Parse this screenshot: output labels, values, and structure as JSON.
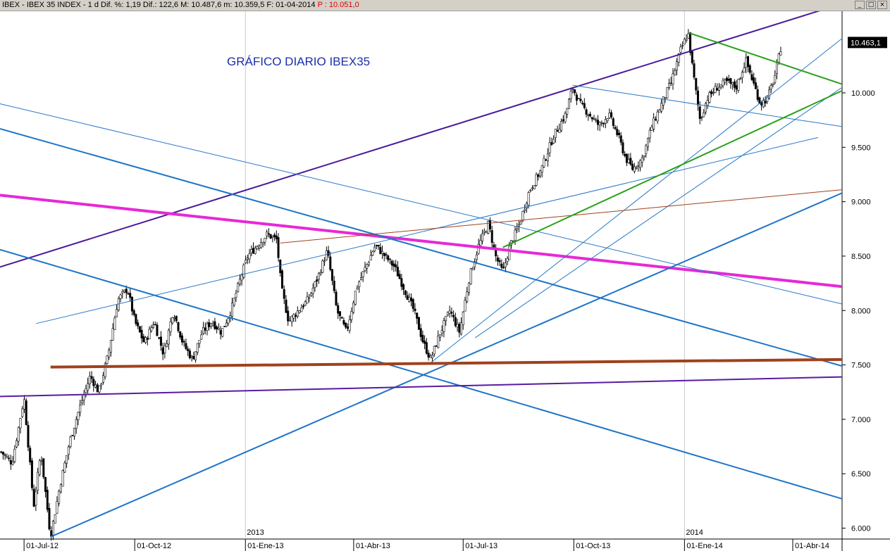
{
  "window": {
    "title_main": "IBEX - IBEX 35 INDEX - 1 d Dif. %: 1,19 Dif.: 122,6 M: 10.487,6 m: 10.359,5 F: 01-04-2014 ",
    "title_price": "P : 10.051,0",
    "minimize_icon": "minimize-icon",
    "maximize_icon": "maximize-icon",
    "close_icon": "close-icon",
    "minimize_glyph": "_",
    "maximize_glyph": "□",
    "close_glyph": "×"
  },
  "chart_data": {
    "type": "candlestick",
    "annotation": "GRÁFICO DIARIO IBEX35",
    "y_ticks": [
      "6.000",
      "6.500",
      "7.000",
      "7.500",
      "8.000",
      "8.500",
      "9.000",
      "9.500",
      "10.000"
    ],
    "y_tick_values": [
      6000,
      6500,
      7000,
      7500,
      8000,
      8500,
      9000,
      9500,
      10000
    ],
    "ylim": [
      5900,
      10750
    ],
    "last_price_label": "10.463,1",
    "last_price_value": 10463.1,
    "x_ticks": [
      "01-Jul-12",
      "01-Oct-12",
      "01-Ene-13",
      "01-Abr-13",
      "01-Jul-13",
      "01-Oct-13",
      "01-Ene-14",
      "01-Abr-14"
    ],
    "x_tick_days": [
      0,
      92,
      184,
      274,
      365,
      457,
      549,
      639
    ],
    "year_labels": [
      "2013",
      "2014"
    ],
    "year_days": [
      184,
      549
    ],
    "xlim_days": [
      -20,
      680
    ],
    "price_path": [
      [
        -19,
        6700
      ],
      [
        -10,
        6600
      ],
      [
        0,
        7200
      ],
      [
        8,
        6200
      ],
      [
        14,
        6700
      ],
      [
        22,
        5920
      ],
      [
        30,
        6400
      ],
      [
        38,
        6800
      ],
      [
        46,
        7100
      ],
      [
        55,
        7400
      ],
      [
        62,
        7250
      ],
      [
        70,
        7600
      ],
      [
        78,
        8100
      ],
      [
        86,
        8200
      ],
      [
        92,
        7900
      ],
      [
        100,
        7700
      ],
      [
        108,
        7900
      ],
      [
        116,
        7600
      ],
      [
        124,
        8000
      ],
      [
        132,
        7700
      ],
      [
        140,
        7550
      ],
      [
        148,
        7800
      ],
      [
        156,
        7900
      ],
      [
        164,
        7800
      ],
      [
        172,
        8000
      ],
      [
        180,
        8300
      ],
      [
        186,
        8500
      ],
      [
        194,
        8600
      ],
      [
        202,
        8700
      ],
      [
        210,
        8650
      ],
      [
        214,
        8200
      ],
      [
        220,
        7900
      ],
      [
        228,
        8000
      ],
      [
        236,
        8100
      ],
      [
        244,
        8300
      ],
      [
        252,
        8550
      ],
      [
        260,
        8000
      ],
      [
        268,
        7800
      ],
      [
        276,
        8200
      ],
      [
        284,
        8400
      ],
      [
        292,
        8600
      ],
      [
        300,
        8500
      ],
      [
        308,
        8400
      ],
      [
        316,
        8200
      ],
      [
        324,
        8000
      ],
      [
        332,
        7700
      ],
      [
        338,
        7550
      ],
      [
        346,
        7800
      ],
      [
        354,
        8000
      ],
      [
        362,
        7800
      ],
      [
        370,
        8300
      ],
      [
        378,
        8600
      ],
      [
        386,
        8800
      ],
      [
        392,
        8500
      ],
      [
        398,
        8350
      ],
      [
        404,
        8600
      ],
      [
        412,
        8800
      ],
      [
        420,
        9100
      ],
      [
        430,
        9300
      ],
      [
        440,
        9600
      ],
      [
        450,
        9800
      ],
      [
        456,
        10050
      ],
      [
        462,
        9900
      ],
      [
        470,
        9800
      ],
      [
        478,
        9700
      ],
      [
        486,
        9800
      ],
      [
        494,
        9600
      ],
      [
        500,
        9400
      ],
      [
        506,
        9300
      ],
      [
        514,
        9400
      ],
      [
        522,
        9700
      ],
      [
        530,
        9900
      ],
      [
        538,
        10100
      ],
      [
        546,
        10400
      ],
      [
        552,
        10550
      ],
      [
        556,
        10200
      ],
      [
        562,
        9750
      ],
      [
        568,
        9950
      ],
      [
        576,
        10050
      ],
      [
        584,
        10100
      ],
      [
        592,
        10050
      ],
      [
        600,
        10300
      ],
      [
        606,
        10100
      ],
      [
        612,
        9900
      ],
      [
        618,
        9950
      ],
      [
        624,
        10150
      ],
      [
        630,
        10463
      ]
    ],
    "trendlines": [
      {
        "color": "#4a1a9a",
        "width": 2,
        "from": [
          -20,
          8400
        ],
        "to": [
          680,
          10820
        ]
      },
      {
        "color": "#e629d6",
        "width": 4,
        "from": [
          -20,
          9060
        ],
        "to": [
          680,
          8220
        ]
      },
      {
        "color": "#1e74c8",
        "width": 2,
        "from": [
          -20,
          9670
        ],
        "to": [
          680,
          7490
        ]
      },
      {
        "color": "#1e74c8",
        "width": 2,
        "from": [
          -20,
          8560
        ],
        "to": [
          680,
          6270
        ]
      },
      {
        "color": "#1e74c8",
        "width": 2,
        "from": [
          22,
          5920
        ],
        "to": [
          680,
          9080
        ]
      },
      {
        "color": "#2878c8",
        "width": 1,
        "from": [
          -20,
          9900
        ],
        "to": [
          680,
          8060
        ]
      },
      {
        "color": "#2878c8",
        "width": 1,
        "from": [
          10,
          7880
        ],
        "to": [
          660,
          9590
        ]
      },
      {
        "color": "#2878c8",
        "width": 1,
        "from": [
          338,
          7520
        ],
        "to": [
          680,
          10500
        ]
      },
      {
        "color": "#2878c8",
        "width": 1,
        "from": [
          375,
          7750
        ],
        "to": [
          680,
          10050
        ]
      },
      {
        "color": "#2878c8",
        "width": 1,
        "from": [
          456,
          10070
        ],
        "to": [
          680,
          9690
        ]
      },
      {
        "color": "#a0411d",
        "width": 4,
        "from": [
          22,
          7480
        ],
        "to": [
          680,
          7550
        ]
      },
      {
        "color": "#a0411d",
        "width": 1,
        "from": [
          213,
          8620
        ],
        "to": [
          680,
          9110
        ]
      },
      {
        "color": "#5a1aa0",
        "width": 2,
        "from": [
          -20,
          7210
        ],
        "to": [
          680,
          7390
        ]
      },
      {
        "color": "#2aa01a",
        "width": 2,
        "from": [
          398,
          8580
        ],
        "to": [
          680,
          10020
        ]
      },
      {
        "color": "#2aa01a",
        "width": 2,
        "from": [
          553,
          10550
        ],
        "to": [
          680,
          10080
        ]
      }
    ]
  }
}
